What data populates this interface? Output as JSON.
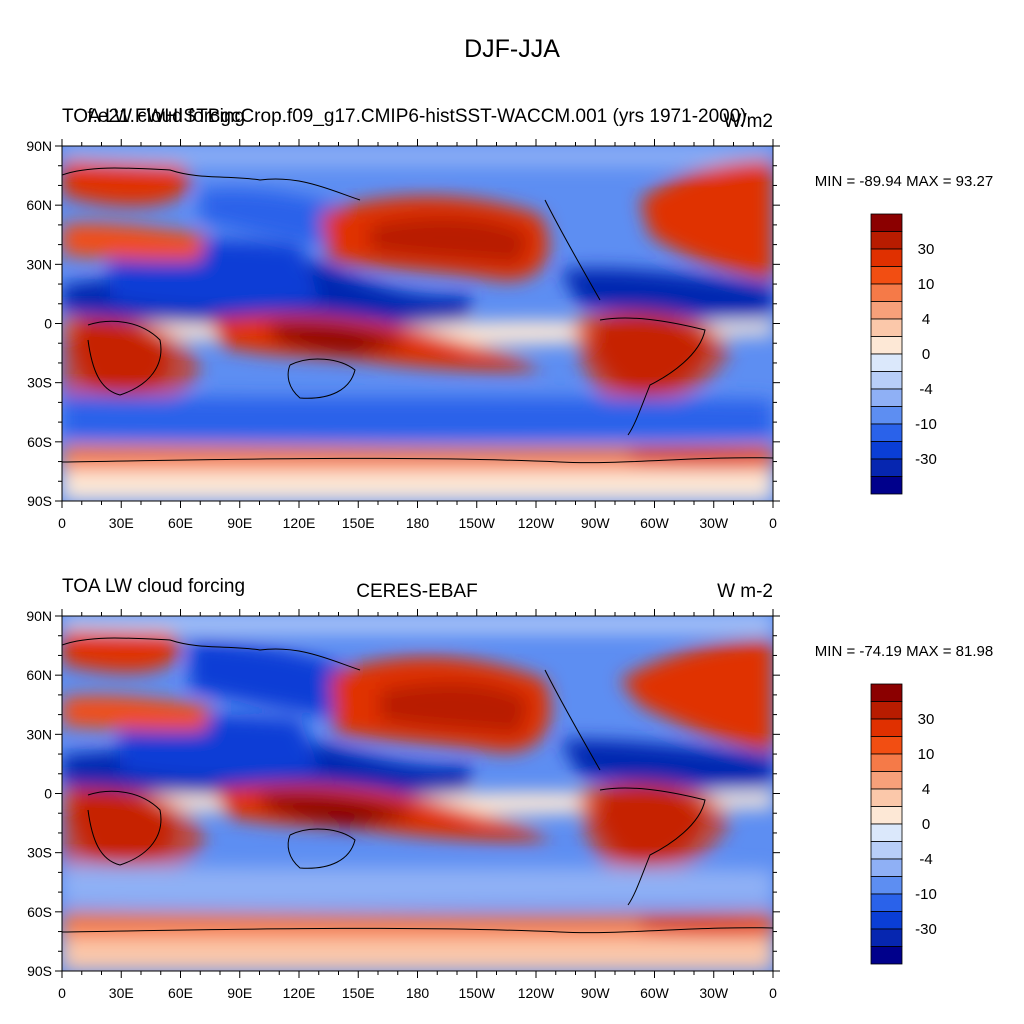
{
  "page_title": "DJF-JJA",
  "panels": [
    {
      "left_title": "TOA LW cloud forcing",
      "center_title": "f.e21.FWHISTBgcCrop.f09_g17.CMIP6-histSST-WACCM.001 (yrs 1971-2000)",
      "right_title": "W/m2",
      "stats": "MIN = -89.94 MAX =  93.27"
    },
    {
      "left_title": "TOA LW cloud forcing",
      "center_title": "CERES-EBAF",
      "right_title": "W m-2",
      "stats": "MIN = -74.19 MAX =  81.98"
    }
  ],
  "axes": {
    "lat_labels": [
      "90N",
      "60N",
      "30N",
      "0",
      "30S",
      "60S",
      "90S"
    ],
    "lon_labels": [
      "0",
      "30E",
      "60E",
      "90E",
      "120E",
      "150E",
      "180",
      "150W",
      "120W",
      "90W",
      "60W",
      "30W",
      "0"
    ]
  },
  "colorbar": {
    "labels": [
      "30",
      "10",
      "4",
      "0",
      "-4",
      "-10",
      "-30"
    ],
    "colors": [
      "#8b0000",
      "#b81c00",
      "#e03000",
      "#f24e12",
      "#f57a48",
      "#f7a07a",
      "#fbc8aa",
      "#fde8d6",
      "#dbe8fb",
      "#b8cef8",
      "#8fb0f5",
      "#5d8ef2",
      "#2a62ea",
      "#0a3ed6",
      "#0626b0",
      "#00008b"
    ]
  }
}
